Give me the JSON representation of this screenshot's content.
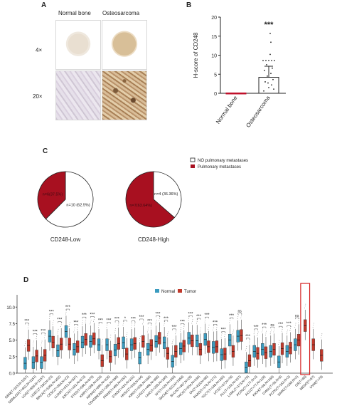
{
  "panelA": {
    "letter": "A",
    "col_labels": [
      "Normal bone",
      "Osteosarcoma"
    ],
    "row_labels": [
      "4×",
      "20×"
    ]
  },
  "panelB": {
    "letter": "B",
    "chart_data": {
      "type": "bar",
      "categories": [
        "Normal bone",
        "Osteosarcoma"
      ],
      "values": [
        0.1,
        4.2
      ],
      "error_upper": [
        0.0,
        7.1
      ],
      "ylabel": "H-score of CD248",
      "ylim": [
        0,
        20
      ],
      "yticks": [
        0,
        5,
        10,
        15,
        20
      ],
      "significance": "***",
      "colors": {
        "bar1": "#c0102a",
        "bar2": "#ffffff",
        "edge": "#222222"
      }
    }
  },
  "panelC": {
    "letter": "C",
    "legend": [
      "NO pulmonary metastases",
      "Pulmonary metastases"
    ],
    "chart_data": [
      {
        "type": "pie",
        "title": "CD248-Low",
        "slices": [
          {
            "label": "n=6(37.5%)",
            "value": 37.5,
            "color": "#a81020"
          },
          {
            "label": "n=10 (62.5%)",
            "value": 62.5,
            "color": "#ffffff"
          }
        ]
      },
      {
        "type": "pie",
        "title": "CD248-High",
        "slices": [
          {
            "label": "n=7(63.64%)",
            "value": 63.64,
            "color": "#a81020"
          },
          {
            "label": "n=4 (36.36%)",
            "value": 36.36,
            "color": "#ffffff"
          }
        ]
      }
    ]
  },
  "panelD": {
    "letter": "D",
    "chart_data": {
      "type": "box",
      "legend": [
        "Normal",
        "Tumor"
      ],
      "colors": {
        "normal": "#3a9bbf",
        "tumor": "#c0392b",
        "highlight": "#d42020"
      },
      "ylim": [
        0,
        11
      ],
      "yticks": [
        0.0,
        2.5,
        5.0,
        7.5,
        10.0
      ],
      "ytick_labels": [
        "0.0",
        "2.5",
        "5.0",
        "7.5",
        "10.0"
      ],
      "highlight_category": "OS(T=88)",
      "categories": [
        "GBM(T=153,N=1157)",
        "GBMLGG(T=662,N=1157)",
        "LGG(T=509,N=1157)",
        "UCEC(T=180,N=23)",
        "BRCA(T=1092,N=292)",
        "CESC(T=304,N=22)",
        "LUAD(T=513,N=397)",
        "ESCA(T=181,N=673)",
        "STES(T=596,N=879)",
        "KIRP(T=288,N=200)",
        "KIPAN(T=884,N=328)",
        "COADREAD(T=380,N=359)",
        "PRAD(T=495,N=152)",
        "STAD(T=414,N=211)",
        "HNSC(T=518,N=44)",
        "KIRC(T=530,N=168)",
        "LUSC(T=498,N=388)",
        "LIHC(T=369,N=160)",
        "WT(T=120,N=168)",
        "SKCM(T=102,N=1558)",
        "BLCA(T=407,N=28)",
        "THCA(T=504,N=338)",
        "OV(T=419,N=88)",
        "PAAD(T=178,N=171)",
        "TGCT(T=148,N=165)",
        "UCS(T=57,N=78)",
        "ALL(T=132,N=337)",
        "LAML(T=173,N=70)",
        "PCPG(T=177,N=3)",
        "ACC(T=77,N=128)",
        "KICH(T=66,N=168)",
        "CHOL(T=36,N=9)",
        "PCPG(T=162,N=3)",
        "SARC(T=258,N=2)",
        "OS(T=88)",
        "MESO(T=87)",
        "UVM(T=79)"
      ],
      "sig": [
        "***",
        "***",
        "***",
        "***",
        "***",
        "***",
        "***",
        "***",
        "***",
        "***",
        "***",
        "***",
        "*",
        "***",
        "***",
        "***",
        "***",
        "***",
        "***",
        "***",
        "***",
        "***",
        "***",
        "***",
        "***",
        "***",
        "ns",
        "***",
        "***",
        "***",
        "ns",
        "***",
        "***",
        "ns",
        "",
        "",
        ""
      ],
      "normal_medians": [
        1.5,
        1.6,
        1.6,
        5.6,
        3.4,
        6.3,
        3.6,
        4.7,
        4.8,
        4.3,
        4.3,
        3.5,
        4.6,
        4.3,
        2.3,
        3.6,
        4.8,
        4.6,
        1.8,
        3.7,
        5.3,
        4.9,
        5.1,
        3.9,
        2.8,
        5.0,
        5.6,
        0.8,
        3.3,
        3.6,
        3.3,
        1.7,
        3.3,
        4.3,
        null,
        null,
        null
      ],
      "tumor_medians": [
        4.2,
        2.6,
        2.7,
        4.7,
        4.4,
        4.4,
        4.0,
        5.1,
        5.2,
        1.9,
        2.5,
        4.5,
        2.9,
        4.5,
        4.8,
        4.2,
        5.3,
        3.0,
        3.3,
        4.1,
        4.9,
        3.6,
        4.0,
        4.0,
        2.9,
        3.3,
        5.7,
        1.9,
        3.0,
        3.1,
        3.6,
        3.7,
        3.8,
        5.0,
        7.2,
        4.3,
        2.7
      ]
    }
  }
}
